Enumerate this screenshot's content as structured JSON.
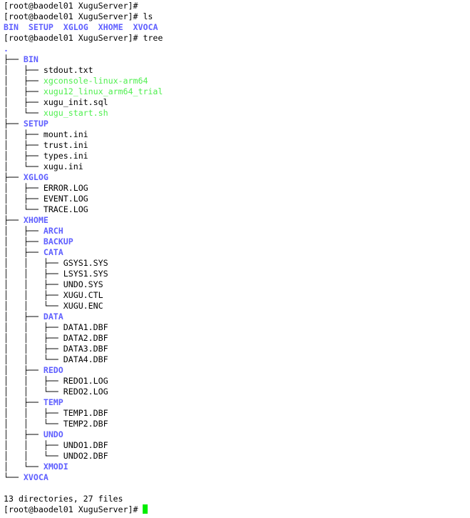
{
  "terminal": {
    "colors": {
      "directory": "#5f5fff",
      "executable": "#4fef4f",
      "cursor": "#00ee00",
      "text": "#000000",
      "background": "#ffffff"
    },
    "lines": [
      [
        [
          "[root@baodel01 XuguServer]#",
          "prompt"
        ]
      ],
      [
        [
          "[root@baodel01 XuguServer]# ls",
          "prompt"
        ]
      ],
      [
        [
          "BIN",
          "dir"
        ],
        [
          "  ",
          "plain"
        ],
        [
          "SETUP",
          "dir"
        ],
        [
          "  ",
          "plain"
        ],
        [
          "XGLOG",
          "dir"
        ],
        [
          "  ",
          "plain"
        ],
        [
          "XHOME",
          "dir"
        ],
        [
          "  ",
          "plain"
        ],
        [
          "XVOCA",
          "dir"
        ]
      ],
      [
        [
          "[root@baodel01 XuguServer]# tree",
          "prompt"
        ]
      ],
      [
        [
          ".",
          "dir"
        ]
      ],
      [
        [
          "├── ",
          "tree"
        ],
        [
          "BIN",
          "dir"
        ]
      ],
      [
        [
          "│   ├── ",
          "tree"
        ],
        [
          "stdout.txt",
          "file"
        ]
      ],
      [
        [
          "│   ├── ",
          "tree"
        ],
        [
          "xgconsole-linux-arm64",
          "exec"
        ]
      ],
      [
        [
          "│   ├── ",
          "tree"
        ],
        [
          "xugu12_linux_arm64_trial",
          "exec"
        ]
      ],
      [
        [
          "│   ├── ",
          "tree"
        ],
        [
          "xugu_init.sql",
          "file"
        ]
      ],
      [
        [
          "│   └── ",
          "tree"
        ],
        [
          "xugu_start.sh",
          "exec"
        ]
      ],
      [
        [
          "├── ",
          "tree"
        ],
        [
          "SETUP",
          "dir"
        ]
      ],
      [
        [
          "│   ├── ",
          "tree"
        ],
        [
          "mount.ini",
          "file"
        ]
      ],
      [
        [
          "│   ├── ",
          "tree"
        ],
        [
          "trust.ini",
          "file"
        ]
      ],
      [
        [
          "│   ├── ",
          "tree"
        ],
        [
          "types.ini",
          "file"
        ]
      ],
      [
        [
          "│   └── ",
          "tree"
        ],
        [
          "xugu.ini",
          "file"
        ]
      ],
      [
        [
          "├── ",
          "tree"
        ],
        [
          "XGLOG",
          "dir"
        ]
      ],
      [
        [
          "│   ├── ",
          "tree"
        ],
        [
          "ERROR.LOG",
          "file"
        ]
      ],
      [
        [
          "│   ├── ",
          "tree"
        ],
        [
          "EVENT.LOG",
          "file"
        ]
      ],
      [
        [
          "│   └── ",
          "tree"
        ],
        [
          "TRACE.LOG",
          "file"
        ]
      ],
      [
        [
          "├── ",
          "tree"
        ],
        [
          "XHOME",
          "dir"
        ]
      ],
      [
        [
          "│   ├── ",
          "tree"
        ],
        [
          "ARCH",
          "dir"
        ]
      ],
      [
        [
          "│   ├── ",
          "tree"
        ],
        [
          "BACKUP",
          "dir"
        ]
      ],
      [
        [
          "│   ├── ",
          "tree"
        ],
        [
          "CATA",
          "dir"
        ]
      ],
      [
        [
          "│   │   ├── ",
          "tree"
        ],
        [
          "GSYS1.SYS",
          "file"
        ]
      ],
      [
        [
          "│   │   ├── ",
          "tree"
        ],
        [
          "LSYS1.SYS",
          "file"
        ]
      ],
      [
        [
          "│   │   ├── ",
          "tree"
        ],
        [
          "UNDO.SYS",
          "file"
        ]
      ],
      [
        [
          "│   │   ├── ",
          "tree"
        ],
        [
          "XUGU.CTL",
          "file"
        ]
      ],
      [
        [
          "│   │   └── ",
          "tree"
        ],
        [
          "XUGU.ENC",
          "file"
        ]
      ],
      [
        [
          "│   ├── ",
          "tree"
        ],
        [
          "DATA",
          "dir"
        ]
      ],
      [
        [
          "│   │   ├── ",
          "tree"
        ],
        [
          "DATA1.DBF",
          "file"
        ]
      ],
      [
        [
          "│   │   ├── ",
          "tree"
        ],
        [
          "DATA2.DBF",
          "file"
        ]
      ],
      [
        [
          "│   │   ├── ",
          "tree"
        ],
        [
          "DATA3.DBF",
          "file"
        ]
      ],
      [
        [
          "│   │   └── ",
          "tree"
        ],
        [
          "DATA4.DBF",
          "file"
        ]
      ],
      [
        [
          "│   ├── ",
          "tree"
        ],
        [
          "REDO",
          "dir"
        ]
      ],
      [
        [
          "│   │   ├── ",
          "tree"
        ],
        [
          "REDO1.LOG",
          "file"
        ]
      ],
      [
        [
          "│   │   └── ",
          "tree"
        ],
        [
          "REDO2.LOG",
          "file"
        ]
      ],
      [
        [
          "│   ├── ",
          "tree"
        ],
        [
          "TEMP",
          "dir"
        ]
      ],
      [
        [
          "│   │   ├── ",
          "tree"
        ],
        [
          "TEMP1.DBF",
          "file"
        ]
      ],
      [
        [
          "│   │   └── ",
          "tree"
        ],
        [
          "TEMP2.DBF",
          "file"
        ]
      ],
      [
        [
          "│   ├── ",
          "tree"
        ],
        [
          "UNDO",
          "dir"
        ]
      ],
      [
        [
          "│   │   ├── ",
          "tree"
        ],
        [
          "UNDO1.DBF",
          "file"
        ]
      ],
      [
        [
          "│   │   └── ",
          "tree"
        ],
        [
          "UNDO2.DBF",
          "file"
        ]
      ],
      [
        [
          "│   └── ",
          "tree"
        ],
        [
          "XMODI",
          "dir"
        ]
      ],
      [
        [
          "└── ",
          "tree"
        ],
        [
          "XVOCA",
          "dir"
        ]
      ],
      [
        [
          "",
          "plain"
        ]
      ],
      [
        [
          "13 directories, 27 files",
          "plain"
        ]
      ],
      [
        [
          "[root@baodel01 XuguServer]# ",
          "prompt"
        ],
        [
          "",
          "cursor"
        ]
      ]
    ]
  }
}
